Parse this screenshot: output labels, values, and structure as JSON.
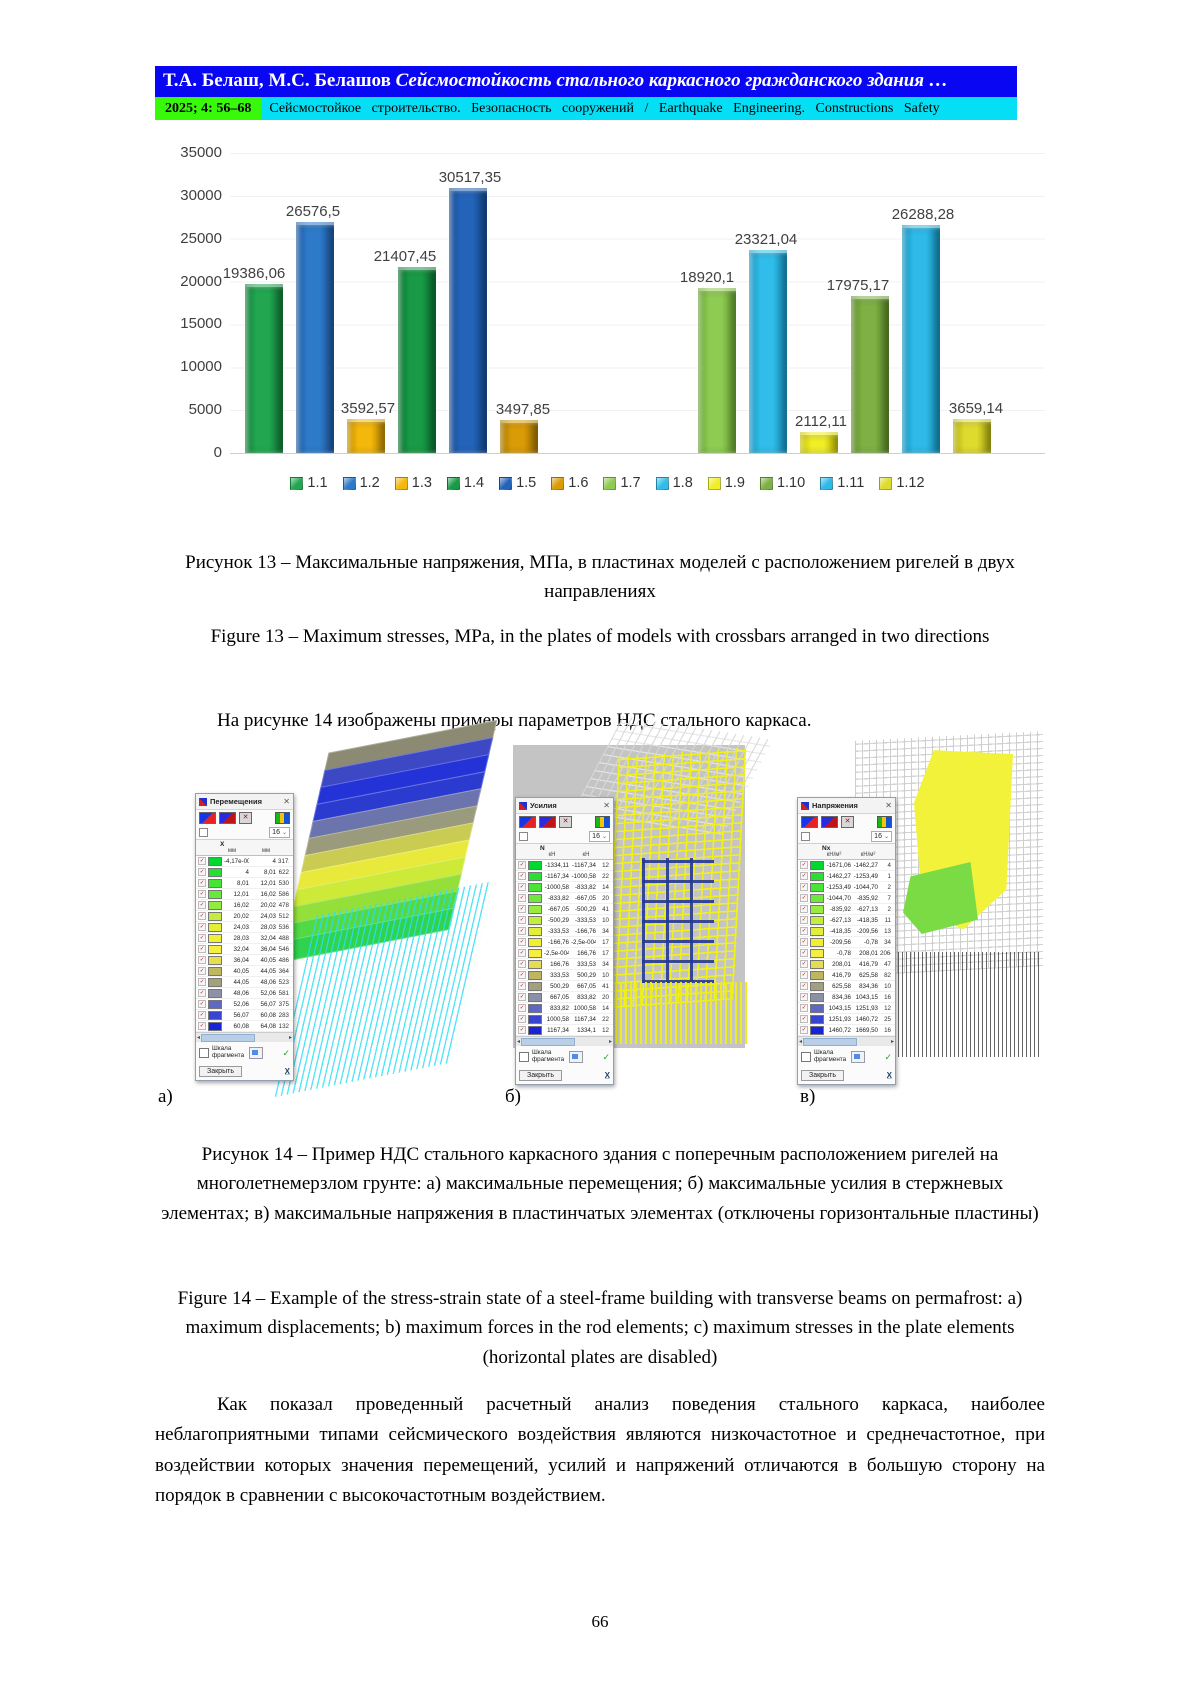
{
  "header": {
    "authors": "Т.А. Белаш, М.С. Белашов ",
    "title": "Сейсмостойкость стального каркасного гражданского здания …",
    "issue": "2025;  4:  56–68",
    "journal_ru": "Сейсмостойкое строительство. Безопасность сооружений",
    "slash": "/",
    "journal_en": "Earthquake Engineering. Constructions Safety"
  },
  "chart_data": {
    "type": "bar",
    "title": "",
    "xlabel": "",
    "ylabel": "",
    "ylim": [
      0,
      35000
    ],
    "yticks": [
      "35000",
      "30000",
      "25000",
      "20000",
      "15000",
      "10000",
      "5000",
      "0"
    ],
    "grid": true,
    "legend_position": "bottom",
    "groups": [
      {
        "bars": [
          {
            "series": "1.1",
            "value": 19386.06,
            "label": "19386,06",
            "color": "#22a750",
            "dark": "#0f7a36",
            "dx": -10
          },
          {
            "series": "1.2",
            "value": 26576.5,
            "label": "26576,5",
            "color": "#2d7ac9",
            "dark": "#1b579f",
            "dx": -2
          },
          {
            "series": "1.3",
            "value": 3592.57,
            "label": "3592,57",
            "color": "#f4b70b",
            "dark": "#bf8c00",
            "dx": 2
          },
          {
            "series": "1.4",
            "value": 21407.45,
            "label": "21407,45",
            "color": "#189a46",
            "dark": "#0a7030",
            "dx": -12
          },
          {
            "series": "1.5",
            "value": 30517.35,
            "label": "30517,35",
            "color": "#2363b8",
            "dark": "#154a90",
            "dx": 2
          },
          {
            "series": "1.6",
            "value": 3497.85,
            "label": "3497,85",
            "color": "#d99b06",
            "dark": "#a47400",
            "dx": 4
          }
        ]
      },
      {
        "bars": [
          {
            "series": "1.7",
            "value": 18920.1,
            "label": "18920,1",
            "color": "#8ecb52",
            "dark": "#67a232",
            "dx": -10
          },
          {
            "series": "1.8",
            "value": 23321.04,
            "label": "23321,04",
            "color": "#31bdea",
            "dark": "#1693bd",
            "dx": -2
          },
          {
            "series": "1.9",
            "value": 2112.11,
            "label": "2112,11",
            "color": "#f0ee27",
            "dark": "#c4c000",
            "dx": 2
          },
          {
            "series": "1.10",
            "value": 17975.17,
            "label": "17975,17",
            "color": "#7fb043",
            "dark": "#5a8a28",
            "dx": -12
          },
          {
            "series": "1.11",
            "value": 26288.28,
            "label": "26288,28",
            "color": "#2fb9e8",
            "dark": "#1390ba",
            "dx": 2
          },
          {
            "series": "1.12",
            "value": 3659.14,
            "label": "3659,14",
            "color": "#dedb2e",
            "dark": "#b0ac10",
            "dx": 4
          }
        ]
      }
    ]
  },
  "captions": {
    "fig13_ru": "Рисунок 13 – Максимальные напряжения, МПа, в пластинах моделей с расположением ригелей в двух направлениях",
    "fig13_en": "Figure 13 – Maximum stresses, MPa, in the plates of models with crossbars arranged in two directions",
    "fig14_ru": "Рисунок 14 – Пример НДС стального каркасного здания с поперечным расположением ригелей на многолетнемерзлом грунте: а) максимальные перемещения; б) максимальные усилия в стержневых элементах; в) максимальные напряжения в пластинчатых элементах (отключены горизонтальные пластины)",
    "fig14_en": "Figure 14 – Example of the stress-strain state of a steel-frame building with transverse beams on permafrost: a) maximum displacements; b) maximum forces in the rod elements; c) maximum stresses in the plate elements (horizontal plates are disabled)"
  },
  "paragraphs": {
    "intro": "На рисунке 14 изображены примеры параметров НДС стального каркаса.",
    "body": "Как показал проведенный расчетный анализ поведения стального каркаса, наиболее неблагоприятными типами сейсмического воздействия являются низкочастотное и среднечастотное, при воздействии которых значения перемещений, усилий и напряжений отличаются в большую сторону на порядок в сравнении с высокочастотным воздействием."
  },
  "figure14": {
    "panel_labels": [
      "а)",
      "б)",
      "в)"
    ],
    "dialogs": [
      {
        "title": "Перемещения",
        "combo": "16",
        "group": "X",
        "units": [
          "мм",
          "мм"
        ],
        "checkbox_label": "Шкала фрагмента",
        "close_label": "Закрыть",
        "export_label": "X",
        "rows": [
          {
            "c": "#00d82f",
            "f": "-4,17e-003",
            "t": "4",
            "n": "3172"
          },
          {
            "c": "#26df33",
            "f": "4",
            "t": "8,01",
            "n": "622"
          },
          {
            "c": "#45e437",
            "f": "8,01",
            "t": "12,01",
            "n": "530"
          },
          {
            "c": "#67e83a",
            "f": "12,01",
            "t": "16,02",
            "n": "586"
          },
          {
            "c": "#92ec3f",
            "f": "16,02",
            "t": "20,02",
            "n": "478"
          },
          {
            "c": "#c4ec3e",
            "f": "20,02",
            "t": "24,03",
            "n": "512"
          },
          {
            "c": "#e3ee39",
            "f": "24,03",
            "t": "28,03",
            "n": "536"
          },
          {
            "c": "#f3ef34",
            "f": "28,03",
            "t": "32,04",
            "n": "488"
          },
          {
            "c": "#f6ef41",
            "f": "32,04",
            "t": "36,04",
            "n": "546"
          },
          {
            "c": "#e7dd50",
            "f": "36,04",
            "t": "40,05",
            "n": "486"
          },
          {
            "c": "#beb75e",
            "f": "40,05",
            "t": "44,05",
            "n": "364"
          },
          {
            "c": "#a3a17c",
            "f": "44,05",
            "t": "48,06",
            "n": "523"
          },
          {
            "c": "#8d91a6",
            "f": "48,06",
            "t": "52,06",
            "n": "581"
          },
          {
            "c": "#5f68c2",
            "f": "52,06",
            "t": "56,07",
            "n": "375"
          },
          {
            "c": "#3944cf",
            "f": "56,07",
            "t": "60,08",
            "n": "283"
          },
          {
            "c": "#1724d8",
            "f": "60,08",
            "t": "64,08",
            "n": "132"
          }
        ]
      },
      {
        "title": "Усилия",
        "combo": "16",
        "group": "N",
        "units": [
          "кН",
          "кН"
        ],
        "checkbox_label": "Шкала фрагмента",
        "close_label": "Закрыть",
        "export_label": "X",
        "rows": [
          {
            "c": "#00d82f",
            "f": "-1334,11",
            "t": "-1167,34",
            "n": "12"
          },
          {
            "c": "#2ade33",
            "f": "-1167,34",
            "t": "-1000,58",
            "n": "22"
          },
          {
            "c": "#49e437",
            "f": "-1000,58",
            "t": "-833,82",
            "n": "14"
          },
          {
            "c": "#6ee93b",
            "f": "-833,82",
            "t": "-667,05",
            "n": "20"
          },
          {
            "c": "#97ec3f",
            "f": "-667,05",
            "t": "-500,29",
            "n": "41"
          },
          {
            "c": "#c3ee3e",
            "f": "-500,29",
            "t": "-333,53",
            "n": "10"
          },
          {
            "c": "#e2ef39",
            "f": "-333,53",
            "t": "-166,76",
            "n": "34"
          },
          {
            "c": "#f2ef33",
            "f": "-166,76",
            "t": "-2,5e-004",
            "n": "17"
          },
          {
            "c": "#f5ee40",
            "f": "-2,5e-004",
            "t": "166,76",
            "n": "17"
          },
          {
            "c": "#e5dc51",
            "f": "166,76",
            "t": "333,53",
            "n": "34"
          },
          {
            "c": "#bdb65f",
            "f": "333,53",
            "t": "500,29",
            "n": "10"
          },
          {
            "c": "#a2a07d",
            "f": "500,29",
            "t": "667,05",
            "n": "41"
          },
          {
            "c": "#8c90a7",
            "f": "667,05",
            "t": "833,82",
            "n": "20"
          },
          {
            "c": "#5e67c3",
            "f": "833,82",
            "t": "1000,58",
            "n": "14"
          },
          {
            "c": "#3843d0",
            "f": "1000,58",
            "t": "1167,34",
            "n": "22"
          },
          {
            "c": "#1623d9",
            "f": "1167,34",
            "t": "1334,1",
            "n": "12"
          }
        ]
      },
      {
        "title": "Напряжения",
        "combo": "16",
        "group": "Nx",
        "units": [
          "кН/м²",
          "кН/м²"
        ],
        "checkbox_label": "Шкала фрагмента",
        "close_label": "Закрыть",
        "export_label": "X",
        "rows": [
          {
            "c": "#00d82f",
            "f": "-1671,06",
            "t": "-1462,27",
            "n": "4"
          },
          {
            "c": "#2ade33",
            "f": "-1462,27",
            "t": "-1253,49",
            "n": "1"
          },
          {
            "c": "#49e437",
            "f": "-1253,49",
            "t": "-1044,70",
            "n": "2"
          },
          {
            "c": "#6ee93b",
            "f": "-1044,70",
            "t": "-835,92",
            "n": "7"
          },
          {
            "c": "#97ec3f",
            "f": "-835,92",
            "t": "-627,13",
            "n": "2"
          },
          {
            "c": "#c3ee3e",
            "f": "-627,13",
            "t": "-418,35",
            "n": "11"
          },
          {
            "c": "#e2ef39",
            "f": "-418,35",
            "t": "-209,56",
            "n": "13"
          },
          {
            "c": "#f2ef33",
            "f": "-209,56",
            "t": "-0,78",
            "n": "34"
          },
          {
            "c": "#f5ee40",
            "f": "-0,78",
            "t": "208,01",
            "n": "2064"
          },
          {
            "c": "#e5dc51",
            "f": "208,01",
            "t": "416,79",
            "n": "47"
          },
          {
            "c": "#bdb65f",
            "f": "416,79",
            "t": "625,58",
            "n": "82"
          },
          {
            "c": "#a2a07d",
            "f": "625,58",
            "t": "834,36",
            "n": "10"
          },
          {
            "c": "#8c90a7",
            "f": "834,36",
            "t": "1043,15",
            "n": "16"
          },
          {
            "c": "#5e67c3",
            "f": "1043,15",
            "t": "1251,93",
            "n": "12"
          },
          {
            "c": "#3843d0",
            "f": "1251,93",
            "t": "1460,72",
            "n": "25"
          },
          {
            "c": "#1623d9",
            "f": "1460,72",
            "t": "1669,50",
            "n": "16"
          }
        ]
      }
    ]
  },
  "page_number": "66"
}
